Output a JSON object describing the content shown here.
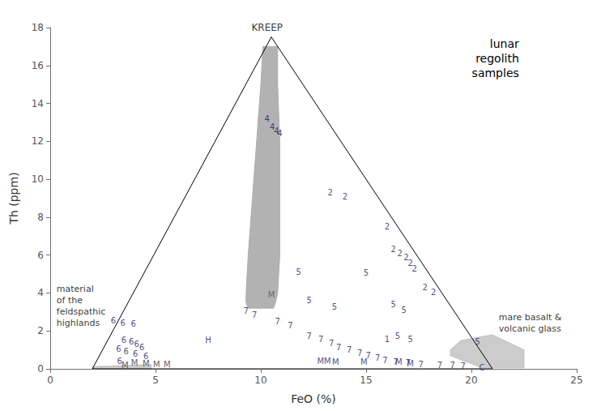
{
  "chart_data": {
    "type": "scatter",
    "title": "lunar\nregolith\nsamples",
    "xlabel": "FeO (%)",
    "ylabel": "Th (ppm)",
    "xlim": [
      0,
      25
    ],
    "ylim": [
      0,
      18
    ],
    "xticks": [
      0,
      5,
      10,
      15,
      20,
      25
    ],
    "yticks": [
      0,
      2,
      4,
      6,
      8,
      10,
      12,
      14,
      16,
      18
    ],
    "grid": false,
    "triangle": {
      "x": [
        2.0,
        10.5,
        21.0
      ],
      "y": [
        0.0,
        17.5,
        0.0
      ],
      "color": "#000000"
    },
    "regions": [
      {
        "x": [
          10.1,
          10.0,
          9.8,
          9.6,
          9.4,
          9.3,
          9.3,
          9.4,
          10.6,
          10.7,
          10.8,
          10.9,
          10.9,
          10.9,
          10.8,
          10.8
        ],
        "y": [
          17.0,
          15.0,
          12.0,
          9.0,
          6.0,
          4.0,
          3.5,
          3.2,
          3.2,
          3.5,
          4.0,
          6.0,
          9.0,
          12.0,
          15.0,
          17.0
        ],
        "color": "#aaaaaa"
      },
      {
        "x": [
          2.0,
          4.8,
          4.8,
          2.0
        ],
        "y": [
          0.0,
          0.0,
          0.22,
          0.12
        ],
        "color": "#aaaaaa"
      },
      {
        "x": [
          19.0,
          20.5,
          22.5,
          22.5,
          21.0,
          19.5,
          19.0
        ],
        "y": [
          0.7,
          0.05,
          0.05,
          1.0,
          1.8,
          1.5,
          1.0
        ],
        "color": "#aaaaaa"
      }
    ],
    "annotations": [
      {
        "x": 10.3,
        "y": 17.7,
        "text": "KREEP"
      },
      {
        "x": 0.3,
        "y": 4.5,
        "text": "material\nof the\nfeldspathic\nhighlands"
      },
      {
        "x": 21.3,
        "y": 2.4,
        "text": "mare basalt &\nvolcanic glass"
      }
    ],
    "points": [
      {
        "x": 10.3,
        "y": 13.2,
        "label": "4",
        "color": "#1a1a6e"
      },
      {
        "x": 10.55,
        "y": 12.75,
        "label": "4",
        "color": "#1a1a6e"
      },
      {
        "x": 10.75,
        "y": 12.55,
        "label": "4",
        "color": "#1a1a6e"
      },
      {
        "x": 10.9,
        "y": 12.4,
        "label": "4",
        "color": "#1a1a6e"
      },
      {
        "x": 13.3,
        "y": 9.3,
        "label": "2",
        "color": "#1a1a6e"
      },
      {
        "x": 14.0,
        "y": 9.1,
        "label": "2",
        "color": "#1a1a6e"
      },
      {
        "x": 16.0,
        "y": 7.5,
        "label": "2",
        "color": "#1a1a6e"
      },
      {
        "x": 16.3,
        "y": 6.3,
        "label": "2",
        "color": "#1a1a6e"
      },
      {
        "x": 16.6,
        "y": 6.1,
        "label": "2",
        "color": "#1a1a6e"
      },
      {
        "x": 16.9,
        "y": 5.9,
        "label": "2",
        "color": "#1a1a6e"
      },
      {
        "x": 17.1,
        "y": 5.6,
        "label": "2",
        "color": "#1a1a6e"
      },
      {
        "x": 17.3,
        "y": 5.3,
        "label": "2",
        "color": "#1a1a6e"
      },
      {
        "x": 17.8,
        "y": 4.3,
        "label": "2",
        "color": "#1a1a6e"
      },
      {
        "x": 18.2,
        "y": 4.05,
        "label": "2",
        "color": "#1a1a6e"
      },
      {
        "x": 11.8,
        "y": 5.1,
        "label": "5",
        "color": "#1a1a6e"
      },
      {
        "x": 12.3,
        "y": 3.6,
        "label": "5",
        "color": "#1a1a6e"
      },
      {
        "x": 13.5,
        "y": 3.25,
        "label": "5",
        "color": "#1a1a6e"
      },
      {
        "x": 15.0,
        "y": 5.05,
        "label": "5",
        "color": "#1a1a6e"
      },
      {
        "x": 16.3,
        "y": 3.4,
        "label": "5",
        "color": "#1a1a6e"
      },
      {
        "x": 16.8,
        "y": 3.1,
        "label": "5",
        "color": "#1a1a6e"
      },
      {
        "x": 16.5,
        "y": 1.75,
        "label": "5",
        "color": "#1a1a6e"
      },
      {
        "x": 17.1,
        "y": 1.55,
        "label": "5",
        "color": "#1a1a6e"
      },
      {
        "x": 20.3,
        "y": 1.45,
        "label": "5",
        "color": "#1a1a6e"
      },
      {
        "x": 9.3,
        "y": 3.05,
        "label": "7",
        "color": "#1a1a6e"
      },
      {
        "x": 9.7,
        "y": 2.85,
        "label": "7",
        "color": "#1a1a6e"
      },
      {
        "x": 10.8,
        "y": 2.5,
        "label": "7",
        "color": "#1a1a6e"
      },
      {
        "x": 11.4,
        "y": 2.3,
        "label": "7",
        "color": "#1a1a6e"
      },
      {
        "x": 12.3,
        "y": 1.75,
        "label": "7",
        "color": "#1a1a6e"
      },
      {
        "x": 12.85,
        "y": 1.55,
        "label": "7",
        "color": "#1a1a6e"
      },
      {
        "x": 13.35,
        "y": 1.35,
        "label": "7",
        "color": "#1a1a6e"
      },
      {
        "x": 13.7,
        "y": 1.15,
        "label": "7",
        "color": "#1a1a6e"
      },
      {
        "x": 14.2,
        "y": 1.0,
        "label": "7",
        "color": "#1a1a6e"
      },
      {
        "x": 14.7,
        "y": 0.85,
        "label": "7",
        "color": "#1a1a6e"
      },
      {
        "x": 15.1,
        "y": 0.7,
        "label": "7",
        "color": "#1a1a6e"
      },
      {
        "x": 15.55,
        "y": 0.58,
        "label": "7",
        "color": "#1a1a6e"
      },
      {
        "x": 15.9,
        "y": 0.45,
        "label": "7",
        "color": "#1a1a6e"
      },
      {
        "x": 16.4,
        "y": 0.38,
        "label": "7",
        "color": "#1a1a6e"
      },
      {
        "x": 17.0,
        "y": 0.32,
        "label": "7",
        "color": "#1a1a6e"
      },
      {
        "x": 17.6,
        "y": 0.25,
        "label": "7",
        "color": "#1a1a6e"
      },
      {
        "x": 18.5,
        "y": 0.2,
        "label": "7",
        "color": "#1a1a6e"
      },
      {
        "x": 19.1,
        "y": 0.18,
        "label": "7",
        "color": "#1a1a6e"
      },
      {
        "x": 19.6,
        "y": 0.15,
        "label": "7",
        "color": "#1a1a6e"
      },
      {
        "x": 13.0,
        "y": 0.42,
        "label": "MM",
        "color": "#1a1a6e"
      },
      {
        "x": 13.55,
        "y": 0.35,
        "label": "M",
        "color": "#1a1a6e"
      },
      {
        "x": 14.9,
        "y": 0.35,
        "label": "M",
        "color": "#1a1a6e"
      },
      {
        "x": 16.55,
        "y": 0.38,
        "label": "M",
        "color": "#1a1a6e"
      },
      {
        "x": 17.1,
        "y": 0.28,
        "label": "M",
        "color": "#1a1a6e"
      },
      {
        "x": 16.0,
        "y": 1.55,
        "label": "1",
        "color": "#1a1a6e"
      },
      {
        "x": 20.5,
        "y": 0.08,
        "label": "C",
        "color": "#1a1a6e"
      },
      {
        "x": 7.5,
        "y": 1.5,
        "label": "H",
        "color": "#1a1a6e"
      },
      {
        "x": 10.5,
        "y": 3.9,
        "label": "M",
        "color": "#555555"
      },
      {
        "x": 3.0,
        "y": 2.55,
        "label": "6",
        "color": "#1a1a6e"
      },
      {
        "x": 3.45,
        "y": 2.42,
        "label": "6",
        "color": "#1a1a6e"
      },
      {
        "x": 3.95,
        "y": 2.38,
        "label": "6",
        "color": "#1a1a6e"
      },
      {
        "x": 3.5,
        "y": 1.52,
        "label": "6",
        "color": "#1a1a6e"
      },
      {
        "x": 3.85,
        "y": 1.42,
        "label": "6",
        "color": "#1a1a6e"
      },
      {
        "x": 4.1,
        "y": 1.3,
        "label": "6",
        "color": "#1a1a6e"
      },
      {
        "x": 4.35,
        "y": 1.15,
        "label": "6",
        "color": "#1a1a6e"
      },
      {
        "x": 3.25,
        "y": 1.05,
        "label": "6",
        "color": "#1a1a6e"
      },
      {
        "x": 3.6,
        "y": 0.9,
        "label": "6",
        "color": "#1a1a6e"
      },
      {
        "x": 4.05,
        "y": 0.78,
        "label": "6",
        "color": "#1a1a6e"
      },
      {
        "x": 4.55,
        "y": 0.68,
        "label": "6",
        "color": "#1a1a6e"
      },
      {
        "x": 3.3,
        "y": 0.42,
        "label": "6",
        "color": "#1a1a6e"
      },
      {
        "x": 4.0,
        "y": 0.32,
        "label": "M",
        "color": "#333333"
      },
      {
        "x": 4.55,
        "y": 0.28,
        "label": "M",
        "color": "#333333"
      },
      {
        "x": 5.05,
        "y": 0.25,
        "label": "M",
        "color": "#333333"
      },
      {
        "x": 5.55,
        "y": 0.22,
        "label": "M",
        "color": "#333333"
      },
      {
        "x": 3.55,
        "y": 0.18,
        "label": "M",
        "color": "#333333"
      }
    ]
  }
}
